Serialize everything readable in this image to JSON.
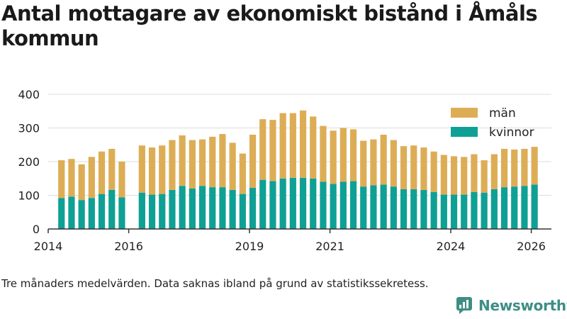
{
  "title": "Antal mottagare av ekonomiskt bistånd i Åmåls kommun",
  "footnote": "Tre månaders medelvärden. Data saknas ibland på grund av statistikssekretess.",
  "brand": "Newsworthy",
  "colors": {
    "man": "#ddad56",
    "kvinnor": "#0fa095",
    "axis": "#333333",
    "grid": "#dddddd",
    "brand": "#3e8e84"
  },
  "chart_data": {
    "type": "bar",
    "stacked": true,
    "title": "Antal mottagare av ekonomiskt bistånd i Åmåls kommun",
    "xlabel": "",
    "ylabel": "",
    "ylim": [
      0,
      400
    ],
    "yticks": [
      0,
      100,
      200,
      300,
      400
    ],
    "xlim": [
      2014.0,
      2026.5
    ],
    "xticks": [
      2014,
      2016,
      2019,
      2021,
      2024,
      2026
    ],
    "legend": "top-right",
    "grid": true,
    "x": [
      2014.33,
      2014.58,
      2014.83,
      2015.08,
      2015.33,
      2015.58,
      2015.83,
      2016.33,
      2016.58,
      2016.83,
      2017.08,
      2017.33,
      2017.58,
      2017.83,
      2018.08,
      2018.33,
      2018.58,
      2018.83,
      2019.08,
      2019.33,
      2019.58,
      2019.83,
      2020.08,
      2020.33,
      2020.58,
      2020.83,
      2021.08,
      2021.33,
      2021.58,
      2021.83,
      2022.08,
      2022.33,
      2022.58,
      2022.83,
      2023.08,
      2023.33,
      2023.58,
      2023.83,
      2024.08,
      2024.33,
      2024.58,
      2024.83,
      2025.08,
      2025.33,
      2025.58,
      2025.83,
      2026.08
    ],
    "series": [
      {
        "name": "kvinnor",
        "values": [
          92,
          96,
          86,
          92,
          104,
          116,
          94,
          108,
          102,
          104,
          116,
          128,
          120,
          128,
          124,
          124,
          116,
          104,
          122,
          146,
          142,
          150,
          152,
          152,
          150,
          140,
          134,
          140,
          142,
          126,
          130,
          132,
          126,
          118,
          118,
          116,
          110,
          102,
          102,
          102,
          110,
          108,
          118,
          124,
          126,
          128,
          132
        ]
      },
      {
        "name": "män",
        "values": [
          112,
          112,
          106,
          122,
          126,
          122,
          106,
          140,
          140,
          144,
          148,
          150,
          144,
          138,
          150,
          158,
          140,
          120,
          158,
          180,
          182,
          194,
          192,
          200,
          184,
          166,
          158,
          160,
          154,
          136,
          136,
          148,
          138,
          128,
          130,
          126,
          120,
          118,
          114,
          112,
          112,
          96,
          104,
          114,
          110,
          110,
          112
        ]
      }
    ]
  }
}
